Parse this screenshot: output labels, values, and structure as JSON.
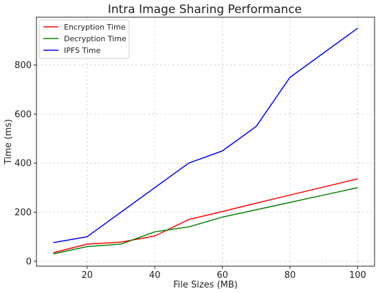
{
  "chart_data": {
    "type": "line",
    "title": "Intra Image Sharing Performance",
    "xlabel": "File Sizes (MB)",
    "ylabel": "Time (ms)",
    "xlim": [
      5,
      105
    ],
    "ylim": [
      -20,
      995
    ],
    "xticks": [
      20,
      40,
      60,
      80,
      100
    ],
    "yticks": [
      0,
      200,
      400,
      600,
      800
    ],
    "grid": true,
    "legend_position": "top-left",
    "x": [
      10,
      20,
      30,
      40,
      50,
      60,
      70,
      80,
      90,
      100
    ],
    "series": [
      {
        "name": "Encryption Time",
        "color": "#ff0000",
        "values": [
          35,
          70,
          78,
          103,
          170,
          203,
          237,
          270,
          303,
          336
        ]
      },
      {
        "name": "Decryption Time",
        "color": "#008000",
        "values": [
          30,
          60,
          70,
          120,
          140,
          180,
          210,
          240,
          270,
          300
        ]
      },
      {
        "name": "IPFS Time",
        "color": "#0000ff",
        "values": [
          76,
          100,
          200,
          300,
          400,
          450,
          550,
          750,
          850,
          950
        ]
      }
    ]
  }
}
